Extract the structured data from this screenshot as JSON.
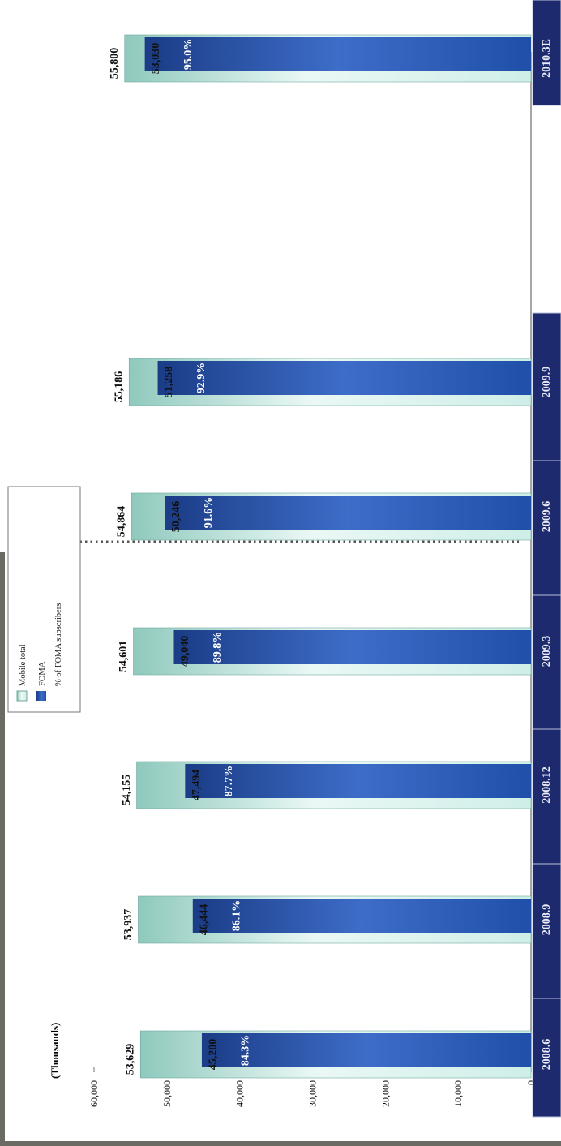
{
  "chart_data": {
    "type": "bar",
    "ylabel": "(Thousands)",
    "ylim": [
      0,
      60000
    ],
    "y_ticks": [
      "0",
      "10,000",
      "20,000",
      "30,000",
      "40,000",
      "50,000",
      "60,000"
    ],
    "y_tick_values": [
      0,
      10000,
      20000,
      30000,
      40000,
      50000,
      60000
    ],
    "categories": [
      "2008.6",
      "2008.9",
      "2008.12",
      "2009.3",
      "2009.6",
      "2009.9",
      "2010.3E"
    ],
    "series": [
      {
        "name": "Mobile total",
        "values": [
          53629,
          53937,
          54155,
          54601,
          54864,
          55186,
          55800
        ],
        "labels": [
          "53,629",
          "53,937",
          "54,155",
          "54,601",
          "54,864",
          "55,186",
          "55,800"
        ],
        "color": "#cfeee8"
      },
      {
        "name": "FOMA",
        "values": [
          45200,
          46444,
          47494,
          49040,
          50246,
          51258,
          53030
        ],
        "labels": [
          "45,200",
          "46,444",
          "47,494",
          "49,040",
          "50,246",
          "51,258",
          "53,030"
        ],
        "color": "#1f4fa8"
      }
    ],
    "foma_share": [
      "84.3%",
      "86.1%",
      "87.7%",
      "89.8%",
      "91.6%",
      "92.9%",
      "95.0%"
    ],
    "legend": {
      "items": [
        "Mobile total",
        "FOMA",
        "% of FOMA subscribers"
      ]
    },
    "category_label_color": "#1e2a6e"
  }
}
